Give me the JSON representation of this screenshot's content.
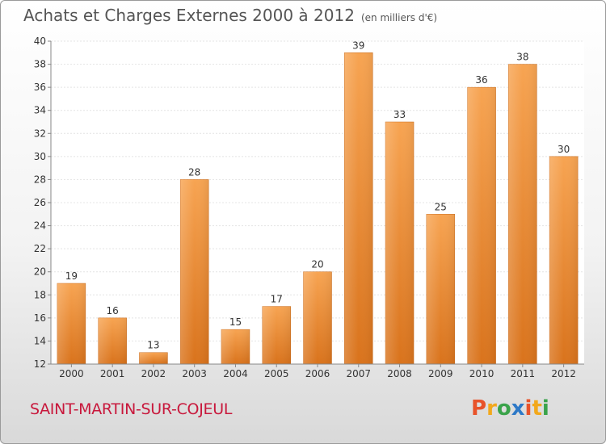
{
  "header": {
    "title": "Achats et Charges Externes 2000 à 2012",
    "unit": "(en milliers d'€)"
  },
  "footer": {
    "commune": "SAINT-MARTIN-SUR-COJEUL",
    "logo": "Proxiti"
  },
  "colors": {
    "bar_top": "#f7a452",
    "bar_bottom": "#d9731c",
    "commune": "#c8183c"
  },
  "chart_data": {
    "type": "bar",
    "categories": [
      "2000",
      "2001",
      "2002",
      "2003",
      "2004",
      "2005",
      "2006",
      "2007",
      "2008",
      "2009",
      "2010",
      "2011",
      "2012"
    ],
    "values": [
      19,
      16,
      13,
      28,
      15,
      17,
      20,
      39,
      33,
      25,
      36,
      38,
      30
    ],
    "title": "Achats et Charges Externes 2000 à 2012",
    "subtitle": "(en milliers d'€)",
    "ylim": [
      12,
      40
    ],
    "yticks": [
      12,
      14,
      16,
      18,
      20,
      22,
      24,
      26,
      28,
      30,
      32,
      34,
      36,
      38,
      40
    ],
    "grid": true,
    "data_labels": true
  }
}
